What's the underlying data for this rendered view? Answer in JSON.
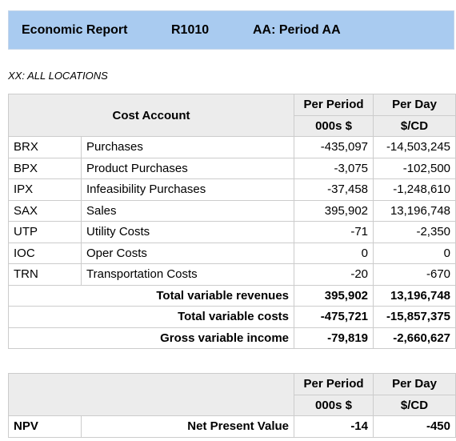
{
  "header": {
    "title": "Economic Report",
    "code": "R1010",
    "period": "AA: Period AA"
  },
  "subtitle": "XX: ALL LOCATIONS",
  "main_table": {
    "cost_account_header": "Cost Account",
    "col1_header": "Per Period",
    "col1_unit": "000s $",
    "col2_header": "Per Day",
    "col2_unit": "$/CD",
    "rows": [
      {
        "code": "BRX",
        "name": "Purchases",
        "per_period": "-435,097",
        "per_day": "-14,503,245"
      },
      {
        "code": "BPX",
        "name": "Product Purchases",
        "per_period": "-3,075",
        "per_day": "-102,500"
      },
      {
        "code": "IPX",
        "name": "Infeasibility Purchases",
        "per_period": "-37,458",
        "per_day": "-1,248,610"
      },
      {
        "code": "SAX",
        "name": "Sales",
        "per_period": "395,902",
        "per_day": "13,196,748"
      },
      {
        "code": "UTP",
        "name": "Utility Costs",
        "per_period": "-71",
        "per_day": "-2,350"
      },
      {
        "code": "IOC",
        "name": "Oper Costs",
        "per_period": "0",
        "per_day": "0"
      },
      {
        "code": "TRN",
        "name": "Transportation Costs",
        "per_period": "-20",
        "per_day": "-670"
      }
    ],
    "totals": [
      {
        "label": "Total variable revenues",
        "per_period": "395,902",
        "per_day": "13,196,748"
      },
      {
        "label": "Total variable costs",
        "per_period": "-475,721",
        "per_day": "-15,857,375"
      },
      {
        "label": "Gross variable income",
        "per_period": "-79,819",
        "per_day": "-2,660,627"
      }
    ]
  },
  "npv_table": {
    "col1_header": "Per Period",
    "col1_unit": "000s $",
    "col2_header": "Per Day",
    "col2_unit": "$/CD",
    "row": {
      "code": "NPV",
      "name": "Net Present Value",
      "per_period": "-14",
      "per_day": "-450"
    }
  }
}
